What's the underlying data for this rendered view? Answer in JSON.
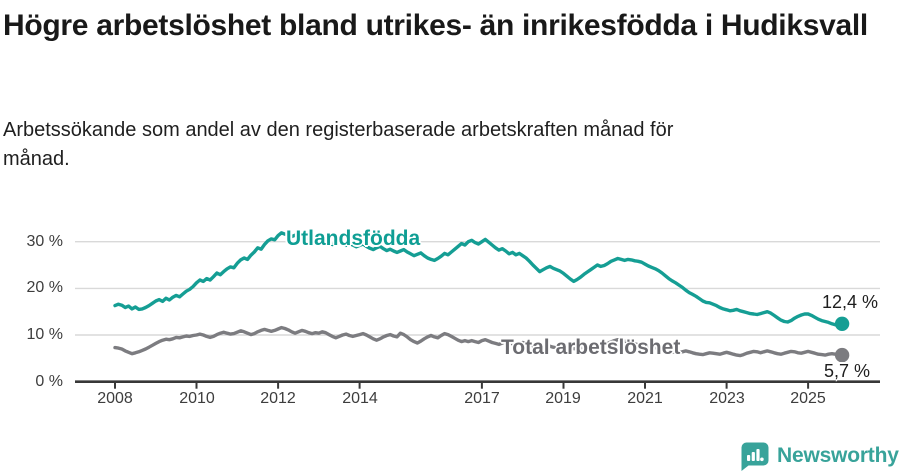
{
  "header": {
    "title": "Högre arbetslöshet bland utrikes- än inrikesfödda i Hudiksvall",
    "subtitle": "Arbetssökande som andel av den registerbaserade arbetskraften månad för månad."
  },
  "chart_data": {
    "type": "line",
    "title": "Högre arbetslöshet bland utrikes- än inrikesfödda i Hudiksvall",
    "x_unit": "month",
    "x_range": [
      "2008-01",
      "2025-11"
    ],
    "x_ticks": [
      2008,
      2010,
      2012,
      2014,
      2017,
      2019,
      2021,
      2023,
      2025
    ],
    "x_tick_labels": [
      "2008",
      "2010",
      "2012",
      "2014",
      "2017",
      "2019",
      "2021",
      "2023",
      "2025"
    ],
    "y_ticks": [
      {
        "label": "0 %",
        "value": 0
      },
      {
        "label": "10 %",
        "value": 10
      },
      {
        "label": "20 %",
        "value": 20
      },
      {
        "label": "30 %",
        "value": 30
      }
    ],
    "ylim": [
      0,
      34
    ],
    "grid": "horizontal",
    "legend_position": "inline-annotations",
    "colors": {
      "grid": "#d9d9d9",
      "axis": "#383838",
      "utlandsfodda": "#159e94",
      "total": "#7c7c80"
    },
    "series": [
      {
        "name": "Utlandsfödda",
        "color": "#159e94",
        "end_value": 12.4,
        "end_value_label": "12,4 %",
        "values": [
          16.3,
          16.6,
          16.4,
          15.9,
          16.2,
          15.6,
          16.0,
          15.5,
          15.6,
          15.9,
          16.3,
          16.8,
          17.3,
          17.6,
          17.2,
          17.9,
          17.5,
          18.1,
          18.5,
          18.2,
          18.8,
          19.4,
          19.8,
          20.4,
          21.2,
          21.8,
          21.5,
          22.1,
          21.8,
          22.5,
          23.3,
          22.9,
          23.6,
          24.2,
          24.6,
          24.4,
          25.4,
          26.1,
          26.5,
          26.2,
          27.1,
          27.8,
          28.7,
          28.4,
          29.4,
          30.2,
          30.6,
          30.4,
          31.3,
          31.9,
          31.6,
          31.7,
          31.1,
          31.4,
          31.6,
          30.9,
          30.5,
          30.8,
          30.3,
          30.0,
          30.4,
          30.7,
          30.2,
          29.8,
          29.4,
          29.7,
          30.0,
          29.5,
          29.2,
          29.6,
          29.3,
          28.9,
          29.2,
          29.5,
          29.0,
          28.6,
          28.3,
          28.7,
          29.0,
          28.5,
          28.1,
          28.4,
          28.0,
          27.7,
          28.0,
          28.3,
          27.8,
          27.4,
          27.0,
          27.3,
          27.6,
          27.0,
          26.5,
          26.2,
          26.0,
          26.4,
          26.9,
          27.5,
          27.2,
          27.8,
          28.4,
          29.0,
          29.6,
          29.3,
          30.0,
          30.3,
          29.8,
          29.5,
          30.0,
          30.5,
          29.9,
          29.3,
          28.7,
          28.2,
          28.5,
          28.0,
          27.4,
          27.7,
          27.2,
          27.5,
          27.0,
          26.5,
          25.8,
          25.0,
          24.3,
          23.6,
          24.0,
          24.4,
          24.7,
          24.3,
          24.0,
          23.7,
          23.2,
          22.6,
          22.0,
          21.5,
          21.9,
          22.4,
          23.0,
          23.5,
          24.0,
          24.5,
          25.0,
          24.7,
          24.9,
          25.3,
          25.8,
          26.1,
          26.4,
          26.2,
          26.0,
          26.2,
          26.1,
          25.9,
          25.8,
          25.6,
          25.2,
          24.8,
          24.5,
          24.2,
          23.8,
          23.3,
          22.7,
          22.1,
          21.6,
          21.2,
          20.7,
          20.2,
          19.6,
          19.1,
          18.7,
          18.3,
          17.8,
          17.3,
          17.0,
          16.9,
          16.6,
          16.3,
          15.9,
          15.6,
          15.4,
          15.2,
          15.3,
          15.5,
          15.2,
          15.0,
          14.8,
          14.6,
          14.5,
          14.4,
          14.6,
          14.8,
          15.0,
          14.7,
          14.2,
          13.7,
          13.2,
          12.9,
          12.8,
          13.1,
          13.6,
          14.0,
          14.3,
          14.5,
          14.5,
          14.2,
          13.8,
          13.4,
          13.1,
          12.9,
          12.7,
          12.4,
          12.2,
          12.1,
          12.4
        ]
      },
      {
        "name": "Total arbetslöshet",
        "color": "#7c7c80",
        "end_value": 5.7,
        "end_value_label": "5,7 %",
        "values": [
          7.3,
          7.2,
          7.0,
          6.6,
          6.3,
          6.0,
          6.2,
          6.4,
          6.7,
          7.0,
          7.4,
          7.8,
          8.2,
          8.6,
          8.9,
          9.1,
          9.0,
          9.2,
          9.5,
          9.4,
          9.6,
          9.8,
          9.7,
          9.9,
          10.0,
          10.2,
          10.0,
          9.7,
          9.5,
          9.7,
          10.1,
          10.4,
          10.6,
          10.4,
          10.2,
          10.3,
          10.6,
          10.9,
          10.7,
          10.4,
          10.1,
          10.3,
          10.7,
          11.0,
          11.2,
          11.0,
          10.8,
          11.0,
          11.3,
          11.6,
          11.4,
          11.1,
          10.7,
          10.4,
          10.7,
          11.0,
          10.8,
          10.5,
          10.3,
          10.5,
          10.4,
          10.7,
          10.5,
          10.1,
          9.7,
          9.4,
          9.7,
          10.0,
          10.2,
          9.9,
          9.7,
          9.9,
          10.1,
          10.3,
          10.0,
          9.6,
          9.2,
          8.9,
          9.2,
          9.6,
          9.9,
          10.1,
          9.8,
          9.6,
          10.4,
          10.1,
          9.6,
          9.0,
          8.6,
          8.3,
          8.7,
          9.2,
          9.6,
          9.9,
          9.6,
          9.4,
          9.9,
          10.3,
          10.1,
          9.7,
          9.3,
          8.9,
          8.6,
          8.8,
          8.6,
          8.8,
          8.6,
          8.4,
          8.8,
          9.0,
          8.7,
          8.4,
          8.2,
          8.0,
          8.3,
          8.5,
          8.3,
          8.1,
          8.0,
          8.2,
          8.4,
          8.2,
          8.0,
          7.7,
          7.5,
          7.3,
          7.6,
          7.8,
          7.6,
          7.4,
          7.3,
          7.5,
          7.7,
          7.5,
          7.3,
          7.1,
          7.0,
          7.2,
          7.5,
          7.3,
          7.2,
          7.4,
          7.6,
          7.8,
          8.0,
          8.2,
          8.5,
          8.8,
          9.0,
          8.9,
          8.7,
          8.5,
          8.3,
          8.1,
          7.9,
          7.7,
          7.9,
          7.7,
          7.5,
          7.3,
          7.1,
          6.9,
          6.7,
          6.5,
          6.4,
          6.3,
          6.2,
          6.4,
          6.6,
          6.4,
          6.2,
          6.0,
          5.9,
          5.8,
          6.0,
          6.2,
          6.1,
          6.0,
          5.9,
          6.1,
          6.3,
          6.1,
          5.9,
          5.7,
          5.6,
          5.8,
          6.1,
          6.3,
          6.5,
          6.4,
          6.2,
          6.4,
          6.6,
          6.4,
          6.2,
          6.0,
          5.9,
          6.1,
          6.3,
          6.5,
          6.4,
          6.2,
          6.1,
          6.3,
          6.5,
          6.3,
          6.1,
          5.9,
          5.8,
          5.7,
          5.9,
          6.0,
          5.9,
          5.8,
          5.7
        ]
      }
    ]
  },
  "footer": {
    "brand": "Newsworthy"
  }
}
